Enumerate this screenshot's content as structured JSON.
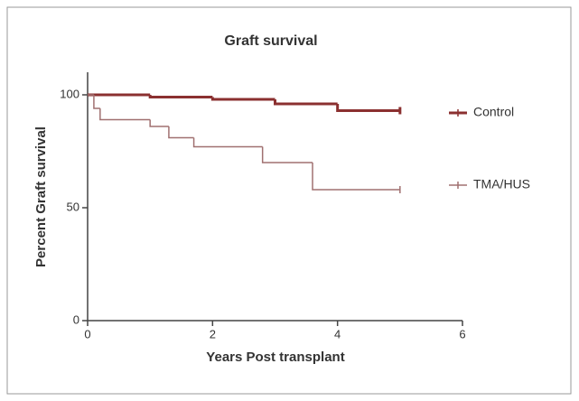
{
  "chart_data": {
    "type": "step",
    "title": "Graft survival",
    "x_label": "Years Post transplant",
    "y_label": "Percent Graft survival",
    "xlim": [
      0,
      6
    ],
    "xticks": [
      0,
      2,
      4,
      6
    ],
    "ylim": [
      0,
      110
    ],
    "yticks": [
      0,
      50,
      100
    ],
    "grid": false,
    "legend": "right",
    "series": [
      {
        "name": "Control",
        "color": "#8b3030",
        "x": [
          0,
          1,
          2,
          3,
          4,
          5
        ],
        "values": [
          100,
          99,
          98,
          96,
          93,
          93
        ]
      },
      {
        "name": "TMA/HUS",
        "color": "#a07070",
        "x": [
          0,
          0.1,
          0.2,
          1,
          1.3,
          1.7,
          2.8,
          3.6,
          5
        ],
        "values": [
          100,
          94,
          89,
          86,
          81,
          77,
          70,
          58,
          58
        ]
      }
    ]
  }
}
